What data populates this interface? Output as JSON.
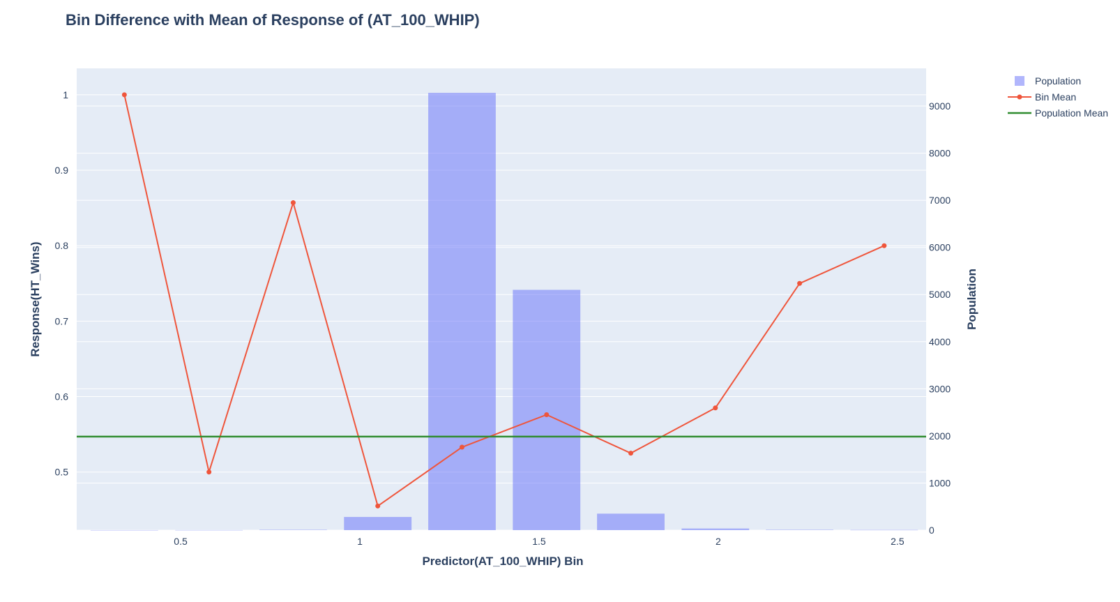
{
  "chart_data": {
    "type": "bar",
    "title": "Bin Difference with Mean of Response of (AT_100_WHIP)",
    "xlabel": "Predictor(AT_100_WHIP) Bin",
    "ylabel": "Response(HT_Wins)",
    "y2label": "Population",
    "xlim": [
      0.21,
      2.58
    ],
    "ylim": [
      0.423,
      1.035
    ],
    "y2lim": [
      0,
      9800
    ],
    "x_ticks": [
      0.5,
      1,
      1.5,
      2,
      2.5
    ],
    "x_tick_labels": [
      "0.5",
      "1",
      "1.5",
      "2",
      "2.5"
    ],
    "y_ticks": [
      0.5,
      0.6,
      0.7,
      0.8,
      0.9,
      1
    ],
    "y_tick_labels": [
      "0.5",
      "0.6",
      "0.7",
      "0.8",
      "0.9",
      "1"
    ],
    "y2_ticks": [
      0,
      1000,
      2000,
      3000,
      4000,
      5000,
      6000,
      7000,
      8000,
      9000
    ],
    "y2_tick_labels": [
      "0",
      "1000",
      "2000",
      "3000",
      "4000",
      "5000",
      "6000",
      "7000",
      "8000",
      "9000"
    ],
    "bin_width": 0.2355,
    "series": [
      {
        "name": "Population",
        "kind": "bar",
        "axis": "y2",
        "color": "#636efa",
        "x": [
          0.343,
          0.579,
          0.814,
          1.05,
          1.285,
          1.521,
          1.756,
          1.992,
          2.227,
          2.463
        ],
        "values": [
          1,
          2,
          8,
          280,
          9280,
          5100,
          350,
          35,
          8,
          5
        ]
      },
      {
        "name": "Bin Mean",
        "kind": "line",
        "axis": "y",
        "color": "#ef553b",
        "x": [
          0.343,
          0.579,
          0.814,
          1.05,
          1.285,
          1.521,
          1.756,
          1.992,
          2.227,
          2.463
        ],
        "values": [
          1.0,
          0.5,
          0.857,
          0.455,
          0.533,
          0.576,
          0.525,
          0.585,
          0.75,
          0.8
        ]
      },
      {
        "name": "Population Mean",
        "kind": "line",
        "axis": "y",
        "color": "#2e8b2e",
        "x": [
          0.21,
          2.58
        ],
        "values": [
          0.547,
          0.547
        ]
      }
    ],
    "legend": {
      "position": "top-right",
      "entries": [
        "Population",
        "Bin Mean",
        "Population Mean"
      ]
    },
    "grid": true,
    "plot_bgcolor": "#e5ecf6",
    "grid_color": "#ffffff",
    "text_color": "#2a3f5f"
  }
}
